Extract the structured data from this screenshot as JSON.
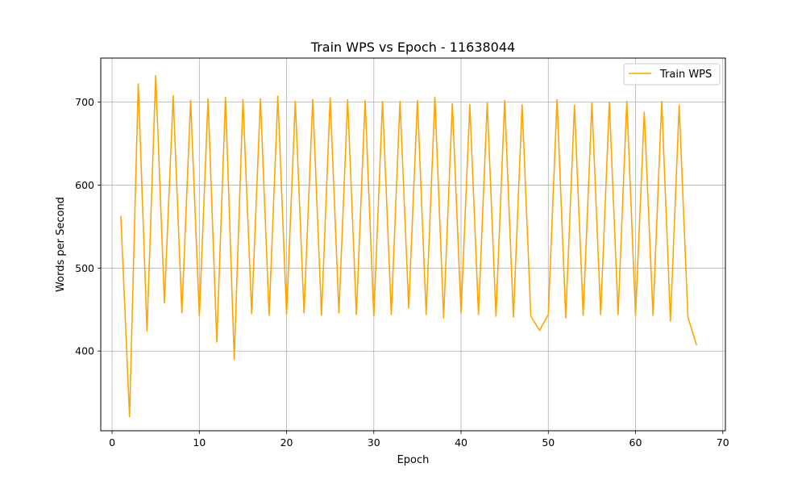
{
  "chart_data": {
    "type": "line",
    "title": "Train WPS vs Epoch - 11638044",
    "xlabel": "Epoch",
    "ylabel": "Words per Second",
    "xlim": [
      -1.3,
      70.3
    ],
    "ylim": [
      304,
      753
    ],
    "xticks": [
      0,
      10,
      20,
      30,
      40,
      50,
      60,
      70
    ],
    "yticks": [
      400,
      500,
      600,
      700
    ],
    "grid": true,
    "legend_position": "top-right",
    "series": [
      {
        "name": "Train WPS",
        "color": "#ffa500",
        "x": [
          1,
          2,
          3,
          4,
          5,
          6,
          7,
          8,
          9,
          10,
          11,
          12,
          13,
          14,
          15,
          16,
          17,
          18,
          19,
          20,
          21,
          22,
          23,
          24,
          25,
          26,
          27,
          28,
          29,
          30,
          31,
          32,
          33,
          34,
          35,
          36,
          37,
          38,
          39,
          40,
          41,
          42,
          43,
          44,
          45,
          46,
          47,
          48,
          49,
          50,
          51,
          52,
          53,
          54,
          55,
          56,
          57,
          58,
          59,
          60,
          61,
          62,
          63,
          64,
          65,
          66,
          67
        ],
        "values": [
          563,
          321,
          722,
          424,
          732,
          458,
          708,
          446,
          702,
          442,
          704,
          411,
          706,
          390,
          703,
          445,
          704,
          443,
          707,
          444,
          701,
          446,
          703,
          443,
          705,
          446,
          703,
          444,
          702,
          442,
          701,
          444,
          701,
          452,
          702,
          444,
          706,
          440,
          698,
          446,
          697,
          444,
          699,
          442,
          702,
          441,
          697,
          442,
          425,
          444,
          703,
          440,
          696,
          443,
          699,
          444,
          700,
          444,
          701,
          443,
          688,
          443,
          701,
          436,
          696,
          441,
          407
        ]
      }
    ]
  }
}
